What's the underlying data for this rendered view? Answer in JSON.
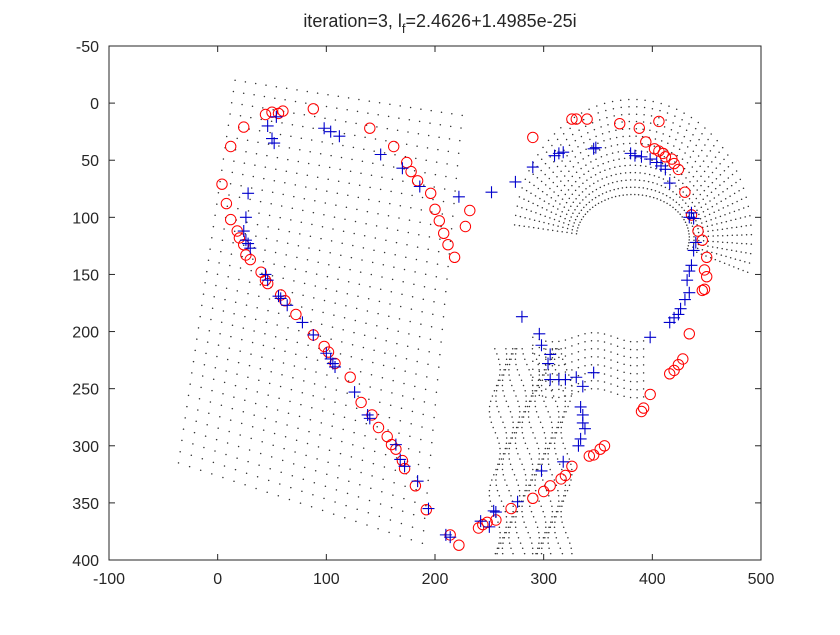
{
  "chart_data": {
    "type": "scatter",
    "title": "iteration=3,  l",
    "title_subscript": "f",
    "title_suffix": "=2.4626+1.4985e-25i",
    "xlabel": "",
    "ylabel": "",
    "xlim": [
      -100,
      500
    ],
    "ylim": [
      -50,
      400
    ],
    "y_reversed": true,
    "grid": false,
    "legend": "none",
    "x_ticks": [
      -100,
      0,
      100,
      200,
      300,
      400,
      500
    ],
    "y_ticks": [
      -50,
      0,
      50,
      100,
      150,
      200,
      250,
      300,
      350,
      400
    ],
    "x_tick_labels": [
      "-100",
      "0",
      "100",
      "200",
      "300",
      "400",
      "500"
    ],
    "y_tick_labels": [
      "-50",
      "0",
      "50",
      "100",
      "150",
      "200",
      "250",
      "300",
      "350",
      "400"
    ],
    "colors": {
      "circle": "#ff0000",
      "plus": "#0000cc",
      "dot": "#333333",
      "axis": "#262626"
    },
    "series": [
      {
        "marker": "circle",
        "color": "#ff0000",
        "points": [
          [
            88,
            5
          ],
          [
            60,
            7
          ],
          [
            56,
            9
          ],
          [
            50,
            8
          ],
          [
            44,
            10
          ],
          [
            24,
            21
          ],
          [
            12,
            38
          ],
          [
            4,
            71
          ],
          [
            8,
            88
          ],
          [
            12,
            102
          ],
          [
            18,
            112
          ],
          [
            20,
            118
          ],
          [
            24,
            124
          ],
          [
            26,
            133
          ],
          [
            30,
            137
          ],
          [
            40,
            148
          ],
          [
            44,
            155
          ],
          [
            46,
            158
          ],
          [
            58,
            168
          ],
          [
            62,
            173
          ],
          [
            72,
            185
          ],
          [
            88,
            203
          ],
          [
            98,
            213
          ],
          [
            102,
            218
          ],
          [
            108,
            228
          ],
          [
            122,
            240
          ],
          [
            132,
            262
          ],
          [
            142,
            273
          ],
          [
            148,
            284
          ],
          [
            156,
            292
          ],
          [
            160,
            299
          ],
          [
            164,
            303
          ],
          [
            170,
            313
          ],
          [
            172,
            320
          ],
          [
            182,
            335
          ],
          [
            192,
            356
          ],
          [
            140,
            22
          ],
          [
            162,
            38
          ],
          [
            174,
            52
          ],
          [
            178,
            60
          ],
          [
            184,
            68
          ],
          [
            196,
            79
          ],
          [
            200,
            93
          ],
          [
            204,
            103
          ],
          [
            208,
            114
          ],
          [
            212,
            124
          ],
          [
            218,
            135
          ],
          [
            228,
            108
          ],
          [
            232,
            94
          ],
          [
            290,
            30
          ],
          [
            326,
            14
          ],
          [
            330,
            14
          ],
          [
            340,
            14
          ],
          [
            370,
            18
          ],
          [
            406,
            16
          ],
          [
            388,
            22
          ],
          [
            394,
            34
          ],
          [
            402,
            40
          ],
          [
            406,
            42
          ],
          [
            410,
            44
          ],
          [
            412,
            47
          ],
          [
            418,
            49
          ],
          [
            420,
            53
          ],
          [
            424,
            58
          ],
          [
            430,
            78
          ],
          [
            436,
            98
          ],
          [
            442,
            112
          ],
          [
            446,
            120
          ],
          [
            450,
            135
          ],
          [
            448,
            146
          ],
          [
            450,
            152
          ],
          [
            446,
            164
          ],
          [
            448,
            163
          ],
          [
            434,
            202
          ],
          [
            428,
            224
          ],
          [
            424,
            229
          ],
          [
            420,
            234
          ],
          [
            416,
            237
          ],
          [
            398,
            255
          ],
          [
            392,
            267
          ],
          [
            390,
            270
          ],
          [
            356,
            300
          ],
          [
            352,
            303
          ],
          [
            346,
            308
          ],
          [
            342,
            309
          ],
          [
            326,
            318
          ],
          [
            320,
            326
          ],
          [
            316,
            329
          ],
          [
            306,
            335
          ],
          [
            300,
            340
          ],
          [
            290,
            346
          ],
          [
            270,
            355
          ],
          [
            256,
            365
          ],
          [
            248,
            367
          ],
          [
            244,
            369
          ],
          [
            240,
            372
          ],
          [
            214,
            378
          ],
          [
            222,
            387
          ]
        ]
      },
      {
        "marker": "plus",
        "color": "#0000cc",
        "points": [
          [
            54,
            12
          ],
          [
            46,
            20
          ],
          [
            50,
            31
          ],
          [
            52,
            35
          ],
          [
            98,
            22
          ],
          [
            104,
            25
          ],
          [
            112,
            29
          ],
          [
            150,
            45
          ],
          [
            28,
            79
          ],
          [
            26,
            100
          ],
          [
            24,
            112
          ],
          [
            26,
            120
          ],
          [
            28,
            123
          ],
          [
            30,
            127
          ],
          [
            44,
            150
          ],
          [
            46,
            155
          ],
          [
            56,
            169
          ],
          [
            58,
            171
          ],
          [
            64,
            177
          ],
          [
            78,
            192
          ],
          [
            88,
            203
          ],
          [
            100,
            219
          ],
          [
            104,
            224
          ],
          [
            106,
            228
          ],
          [
            108,
            231
          ],
          [
            126,
            253
          ],
          [
            138,
            273
          ],
          [
            140,
            276
          ],
          [
            164,
            299
          ],
          [
            168,
            312
          ],
          [
            172,
            318
          ],
          [
            184,
            331
          ],
          [
            194,
            355
          ],
          [
            170,
            57
          ],
          [
            186,
            73
          ],
          [
            222,
            82
          ],
          [
            252,
            78
          ],
          [
            274,
            69
          ],
          [
            290,
            56
          ],
          [
            310,
            46
          ],
          [
            314,
            44
          ],
          [
            318,
            43
          ],
          [
            346,
            40
          ],
          [
            348,
            39
          ],
          [
            380,
            44
          ],
          [
            384,
            46
          ],
          [
            390,
            47
          ],
          [
            398,
            49
          ],
          [
            404,
            52
          ],
          [
            408,
            55
          ],
          [
            412,
            58
          ],
          [
            416,
            70
          ],
          [
            434,
            100
          ],
          [
            436,
            96
          ],
          [
            438,
            101
          ],
          [
            440,
            122
          ],
          [
            438,
            129
          ],
          [
            436,
            142
          ],
          [
            434,
            147
          ],
          [
            432,
            155
          ],
          [
            434,
            166
          ],
          [
            430,
            172
          ],
          [
            426,
            180
          ],
          [
            424,
            185
          ],
          [
            420,
            188
          ],
          [
            416,
            192
          ],
          [
            398,
            205
          ],
          [
            280,
            187
          ],
          [
            296,
            202
          ],
          [
            298,
            212
          ],
          [
            306,
            220
          ],
          [
            304,
            228
          ],
          [
            306,
            242
          ],
          [
            314,
            242
          ],
          [
            320,
            242
          ],
          [
            330,
            240
          ],
          [
            346,
            236
          ],
          [
            336,
            248
          ],
          [
            334,
            266
          ],
          [
            336,
            273
          ],
          [
            336,
            280
          ],
          [
            338,
            285
          ],
          [
            334,
            294
          ],
          [
            332,
            300
          ],
          [
            318,
            314
          ],
          [
            298,
            322
          ],
          [
            276,
            349
          ],
          [
            256,
            358
          ],
          [
            254,
            357
          ],
          [
            242,
            366
          ],
          [
            250,
            371
          ],
          [
            210,
            378
          ],
          [
            214,
            380
          ]
        ]
      }
    ]
  }
}
